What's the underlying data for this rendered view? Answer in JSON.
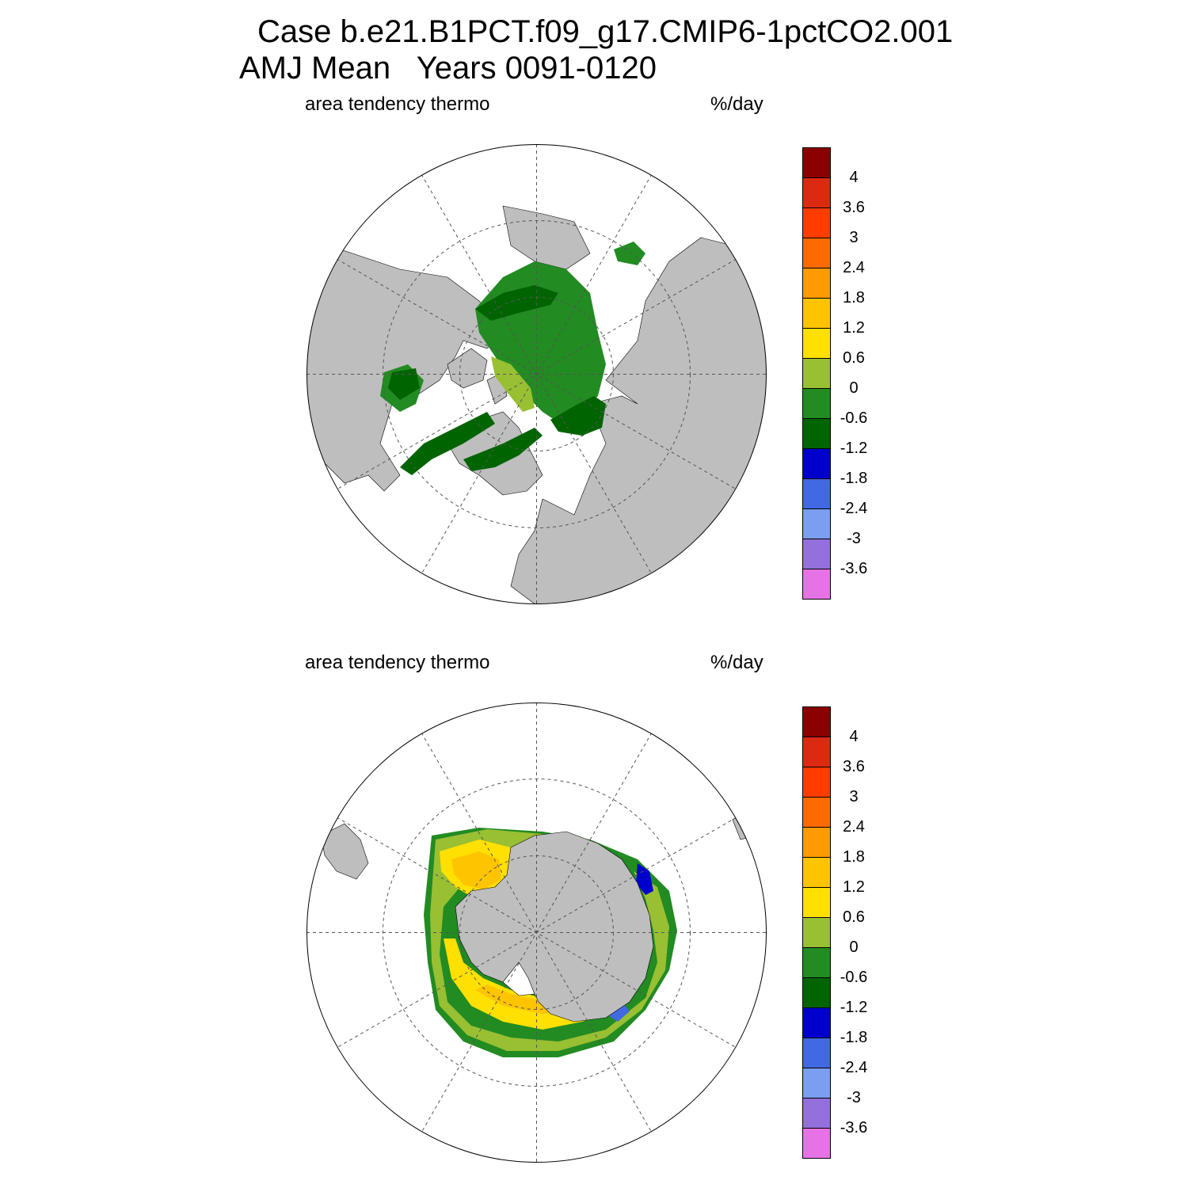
{
  "title": {
    "line1": "Case b.e21.B1PCT.f09_g17.CMIP6-1pctCO2.001",
    "line2": "AMJ Mean   Years 0091-0120"
  },
  "panels": [
    {
      "id": "north",
      "variable": "area tendency thermo",
      "units": "%/day",
      "hemisphere": "Arctic"
    },
    {
      "id": "south",
      "variable": "area tendency thermo",
      "units": "%/day",
      "hemisphere": "Antarctic"
    }
  ],
  "colorbar": {
    "labels": [
      "4",
      "3.6",
      "3",
      "2.4",
      "1.8",
      "1.2",
      "0.6",
      "0",
      "-0.6",
      "-1.2",
      "-1.8",
      "-2.4",
      "-3",
      "-3.6"
    ],
    "colors": [
      "#8b0000",
      "#dc2a12",
      "#ff3c00",
      "#ff6a00",
      "#ff9a00",
      "#ffc400",
      "#ffe000",
      "#99bf33",
      "#228b22",
      "#006400",
      "#0000cd",
      "#4169e1",
      "#7b9ef0",
      "#9370db",
      "#e573e5"
    ]
  },
  "colors": {
    "land": "#bebebe",
    "ocean": "#ffffff",
    "grid": "#555555"
  }
}
